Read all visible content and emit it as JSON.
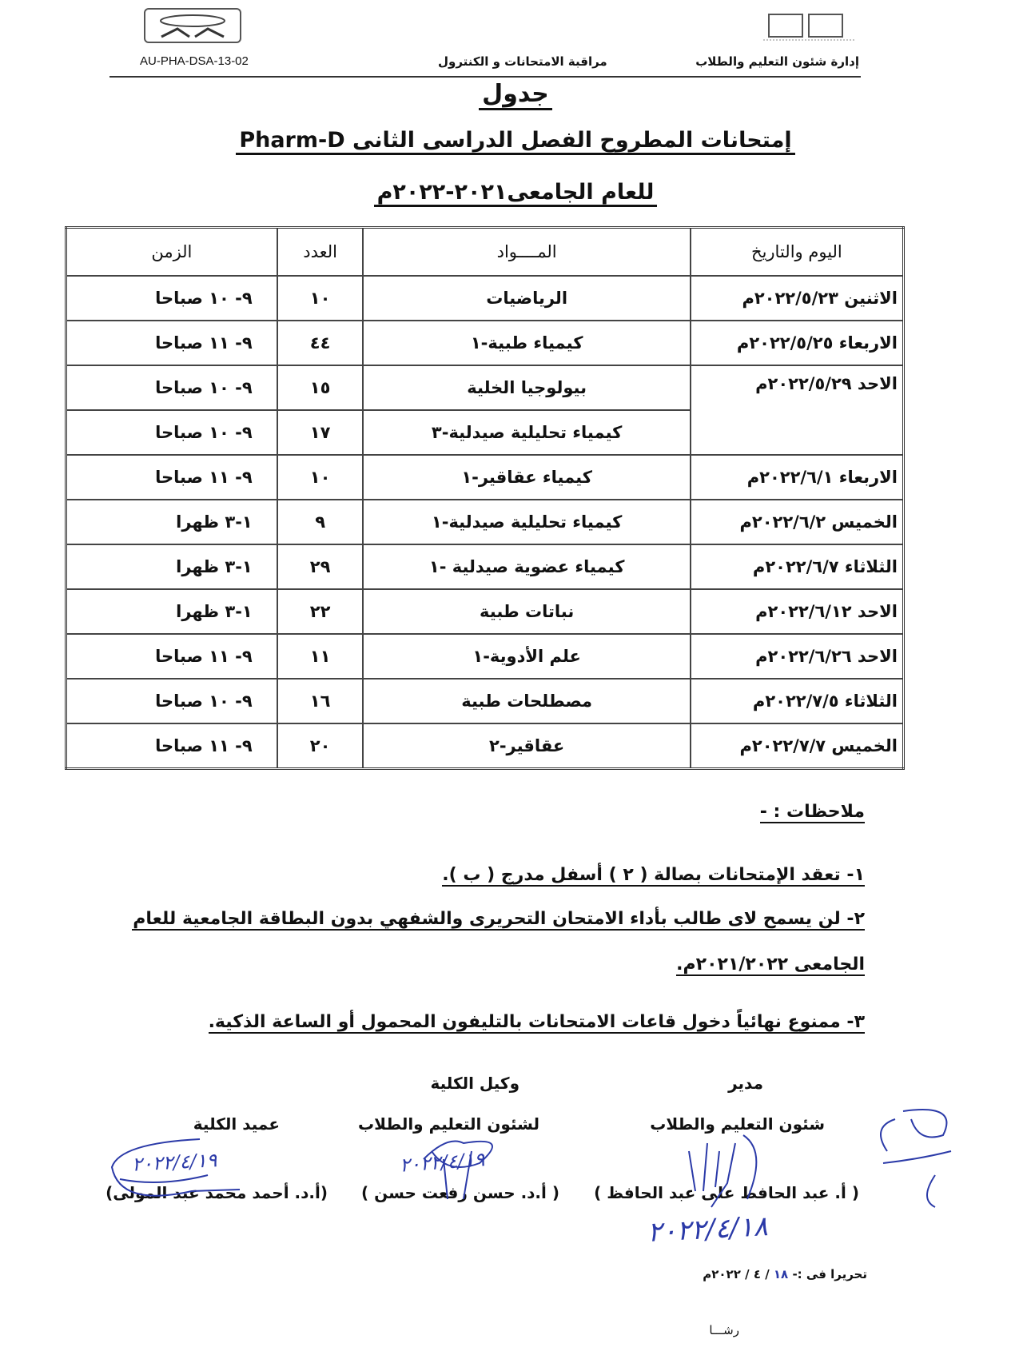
{
  "header": {
    "doc_code": "AU-PHA-DSA-13-02",
    "center_text": "مراقبة الامتحانات و الكنترول",
    "right_text": "إدارة شئون التعليم والطلاب",
    "left_logo": "AUA-logo",
    "right_logo": "university-logo"
  },
  "title": {
    "line1": "جدول",
    "line2": "إمتحانات المطروح الفصل الدراسى الثانى  Pharm-D",
    "line3": "للعام الجامعى٢٠٢١-٢٠٢٢م"
  },
  "table": {
    "headers": [
      "اليوم والتاريخ",
      "المــــواد",
      "العدد",
      "الزمن"
    ],
    "rows": [
      {
        "date": "الاثنين ٢٠٢٢/٥/٢٣م",
        "subject": "الرياضيات",
        "count": "١٠",
        "time": "٩- ١٠ صباحا"
      },
      {
        "date": "الاربعاء ٢٠٢٢/٥/٢٥م",
        "subject": "كيمياء طبية-١",
        "count": "٤٤",
        "time": "٩- ١١ صباحا"
      },
      {
        "date": "الاحد ٢٠٢٢/٥/٢٩م",
        "subject": "بيولوجيا الخلية",
        "count": "١٥",
        "time": "٩- ١٠ صباحا"
      },
      {
        "date": "",
        "subject": "كيمياء تحليلية صيدلية-٣",
        "count": "١٧",
        "time": "٩- ١٠ صباحا"
      },
      {
        "date": "الاربعاء ٢٠٢٢/٦/١م",
        "subject": "كيمياء عقاقير-١",
        "count": "١٠",
        "time": "٩- ١١ صباحا"
      },
      {
        "date": "الخميس ٢٠٢٢/٦/٢م",
        "subject": "كيمياء تحليلية صيدلية-١",
        "count": "٩",
        "time": "١-٣  ظهرا"
      },
      {
        "date": "الثلاثاء ٢٠٢٢/٦/٧م",
        "subject": "كيمياء عضوية صيدلية -١",
        "count": "٢٩",
        "time": "١-٣  ظهرا"
      },
      {
        "date": "الاحد ٢٠٢٢/٦/١٢م",
        "subject": "نباتات طبية",
        "count": "٢٢",
        "time": "١-٣  ظهرا"
      },
      {
        "date": "الاحد ٢٠٢٢/٦/٢٦م",
        "subject": "علم الأدوية-١",
        "count": "١١",
        "time": "٩- ١١ صباحا"
      },
      {
        "date": "الثلاثاء ٢٠٢٢/٧/٥م",
        "subject": "مصطلحات طبية",
        "count": "١٦",
        "time": "٩- ١٠ صباحا"
      },
      {
        "date": "الخميس ٢٠٢٢/٧/٧م",
        "subject": "عقاقير-٢",
        "count": "٢٠",
        "time": "٩- ١١ صباحا"
      }
    ]
  },
  "notes": {
    "heading": "ملاحظات : -",
    "items": [
      "١- تعقد الإمتحانات بصالة ( ٢ ) أسفل مدرج ( ب ).",
      "٢- لن يسمح لاى طالب بأداء الامتحان التحريرى والشفهي بدون البطاقة الجامعية للعام",
      "الجامعى ٢٠٢١/٢٠٢٢م.",
      "٣- ممنوع نهائياً دخول قاعات الامتحانات بالتليفون المحمول أو الساعة الذكية."
    ]
  },
  "signatures": [
    {
      "title1": "مدير",
      "title2": "شئون التعليم والطلاب",
      "name": "( أ. عبد الحافظ على عبد الحافظ )",
      "handwritten_date": "٢٠٢٢/٤/١٨"
    },
    {
      "title1": "وكيل الكلية",
      "title2": "لشئون التعليم والطلاب",
      "name": "( أ.د.  حسن رفعت حسن  )",
      "handwritten_date": "٢٠٢٢/٤/١٩"
    },
    {
      "title1": "",
      "title2": "عميد الكلية",
      "name": "(أ.د. أحمد محمد عبد المولى)",
      "handwritten_date": "٢٠٢٢/٤/١٩"
    }
  ],
  "footer": {
    "written_label": "تحريرا فى :-",
    "written_day": "١٨",
    "written_rest": "/ ٤ / ٢٠٢٢م",
    "typist": "رشـــا"
  },
  "colors": {
    "ink": "#111111",
    "signature_ink": "#2b3aa8"
  }
}
